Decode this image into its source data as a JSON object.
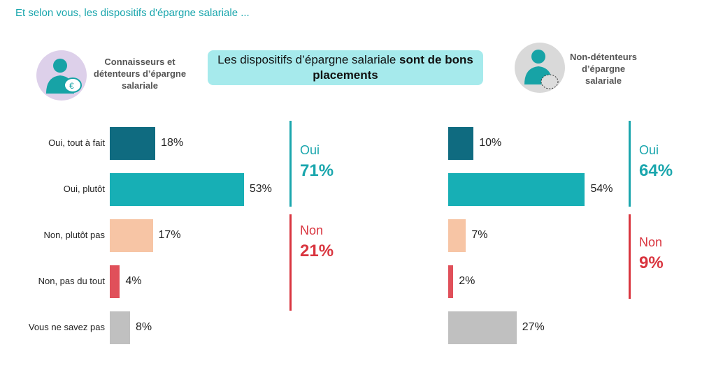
{
  "subtitle": "Et selon vous, les dispositifs d'épargne salariale ...",
  "title": {
    "normal": "Les dispositifs d’épargne salariale ",
    "bold": "sont de bons placements"
  },
  "colors": {
    "tout_a_fait": "#0f6b80",
    "plutot": "#17afb5",
    "plutot_pas": "#f7c5a5",
    "pas_du_tout": "#e0505a",
    "nsp": "#c0c0c0",
    "oui": "#1aa6ad",
    "non": "#d9353f"
  },
  "chart_data": [
    {
      "type": "bar",
      "orientation": "horizontal",
      "segment_label": "Connaisseurs et détenteurs d’épargne salariale",
      "categories": [
        "Oui, tout à fait",
        "Oui, plutôt",
        "Non, plutôt pas",
        "Non, pas du tout",
        "Vous ne savez pas"
      ],
      "values": [
        18,
        53,
        17,
        4,
        8
      ],
      "value_labels": [
        "18%",
        "53%",
        "17%",
        "4%",
        "8%"
      ],
      "groups": [
        {
          "label": "Oui",
          "value": "71%"
        },
        {
          "label": "Non",
          "value": "21%"
        }
      ]
    },
    {
      "type": "bar",
      "orientation": "horizontal",
      "segment_label": "Non-détenteurs d’épargne salariale",
      "categories": [
        "Oui, tout à fait",
        "Oui, plutôt",
        "Non, plutôt pas",
        "Non, pas du tout",
        "Vous ne savez pas"
      ],
      "values": [
        10,
        54,
        7,
        2,
        27
      ],
      "value_labels": [
        "10%",
        "54%",
        "7%",
        "2%",
        "27%"
      ],
      "groups": [
        {
          "label": "Oui",
          "value": "64%"
        },
        {
          "label": "Non",
          "value": "9%"
        }
      ]
    }
  ]
}
